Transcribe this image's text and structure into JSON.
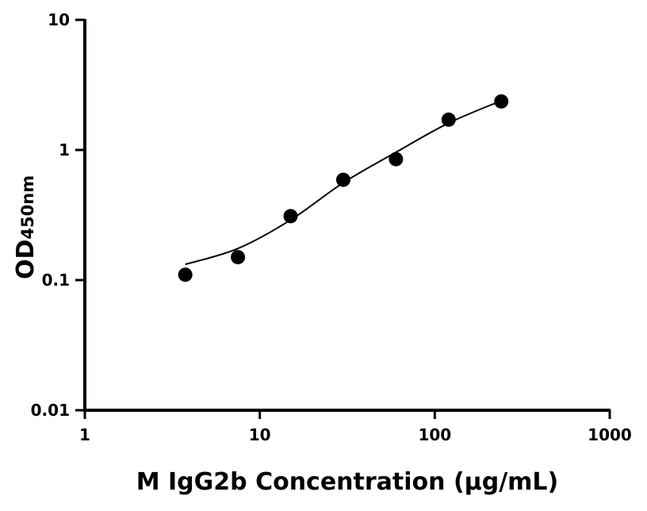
{
  "chart_data": {
    "type": "scatter",
    "xlabel": "M IgG2b Concentration (µg/mL)",
    "ylabel_main": "OD",
    "ylabel_sub": "450nm",
    "x_scale": "log",
    "y_scale": "log",
    "xlim": [
      1,
      1000
    ],
    "ylim": [
      0.01,
      10
    ],
    "x_ticks": [
      1,
      10,
      100,
      1000
    ],
    "x_tick_labels": [
      "1",
      "10",
      "100",
      "1000"
    ],
    "y_ticks": [
      0.01,
      0.1,
      1,
      10
    ],
    "y_tick_labels": [
      "0.01",
      "0.1",
      "1",
      "10"
    ],
    "grid": false,
    "points": {
      "x": [
        3.75,
        7.5,
        15,
        30,
        60,
        120,
        240
      ],
      "y": [
        0.11,
        0.15,
        0.31,
        0.59,
        0.85,
        1.71,
        2.36
      ]
    },
    "fit_curve": {
      "x": [
        3.75,
        7.5,
        15,
        30,
        60,
        120,
        240
      ],
      "y": [
        0.132,
        0.175,
        0.29,
        0.56,
        0.96,
        1.61,
        2.39
      ]
    },
    "color": "#000000"
  }
}
